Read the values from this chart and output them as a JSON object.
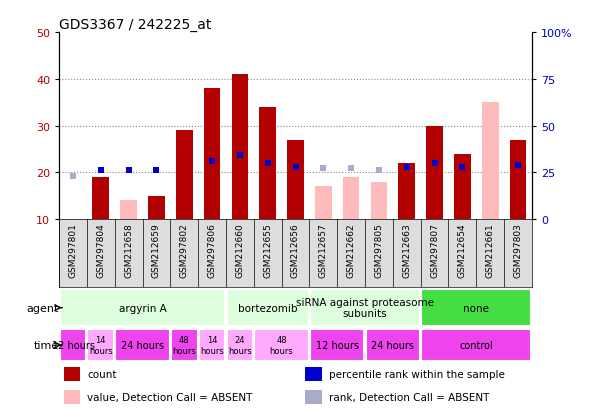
{
  "title": "GDS3367 / 242225_at",
  "samples": [
    "GSM297801",
    "GSM297804",
    "GSM212658",
    "GSM212659",
    "GSM297802",
    "GSM297806",
    "GSM212660",
    "GSM212655",
    "GSM212656",
    "GSM212657",
    "GSM212662",
    "GSM297805",
    "GSM212663",
    "GSM297807",
    "GSM212654",
    "GSM212661",
    "GSM297803"
  ],
  "count_values": [
    10,
    19,
    null,
    15,
    29,
    38,
    41,
    34,
    27,
    null,
    null,
    null,
    22,
    30,
    24,
    null,
    27
  ],
  "count_absent": [
    null,
    null,
    14,
    null,
    null,
    null,
    null,
    null,
    null,
    17,
    19,
    18,
    null,
    null,
    null,
    35,
    null
  ],
  "rank_values": [
    null,
    26,
    26,
    26,
    null,
    31,
    34,
    30,
    28,
    null,
    null,
    null,
    28,
    30,
    28,
    null,
    29
  ],
  "rank_absent": [
    23,
    null,
    null,
    null,
    null,
    null,
    null,
    null,
    null,
    27,
    27,
    26,
    null,
    null,
    null,
    null,
    null
  ],
  "ylim_left": [
    10,
    50
  ],
  "ylim_right": [
    0,
    100
  ],
  "yticks_left": [
    10,
    20,
    30,
    40,
    50
  ],
  "yticks_right": [
    0,
    25,
    50,
    75,
    100
  ],
  "ytick_labels_right": [
    "0",
    "25",
    "50",
    "75",
    "100%"
  ],
  "bar_color_red": "#b30000",
  "bar_color_pink": "#ffbbbb",
  "dot_color_blue": "#0000cc",
  "dot_color_lightblue": "#aaaacc",
  "agent_groups": [
    {
      "label": "argyrin A",
      "start": 0,
      "end": 6,
      "color": "#ddffdd"
    },
    {
      "label": "bortezomib",
      "start": 6,
      "end": 9,
      "color": "#ddffdd"
    },
    {
      "label": "siRNA against proteasome\nsubunits",
      "start": 9,
      "end": 13,
      "color": "#ddffdd"
    },
    {
      "label": "none",
      "start": 13,
      "end": 17,
      "color": "#44dd44"
    }
  ],
  "time_groups": [
    {
      "label": "12 hours",
      "start": 0,
      "end": 1,
      "color": "#ee44ee",
      "fontsize": 7
    },
    {
      "label": "14\nhours",
      "start": 1,
      "end": 2,
      "color": "#ffaaff",
      "fontsize": 6
    },
    {
      "label": "24 hours",
      "start": 2,
      "end": 4,
      "color": "#ee44ee",
      "fontsize": 7
    },
    {
      "label": "48\nhours",
      "start": 4,
      "end": 5,
      "color": "#ee44ee",
      "fontsize": 6
    },
    {
      "label": "14\nhours",
      "start": 5,
      "end": 6,
      "color": "#ffaaff",
      "fontsize": 6
    },
    {
      "label": "24\nhours",
      "start": 6,
      "end": 7,
      "color": "#ffaaff",
      "fontsize": 6
    },
    {
      "label": "48\nhours",
      "start": 7,
      "end": 9,
      "color": "#ffaaff",
      "fontsize": 6
    },
    {
      "label": "12 hours",
      "start": 9,
      "end": 11,
      "color": "#ee44ee",
      "fontsize": 7
    },
    {
      "label": "24 hours",
      "start": 11,
      "end": 13,
      "color": "#ee44ee",
      "fontsize": 7
    },
    {
      "label": "control",
      "start": 13,
      "end": 17,
      "color": "#ee44ee",
      "fontsize": 7
    }
  ],
  "legend_items": [
    {
      "label": "count",
      "color": "#b30000"
    },
    {
      "label": "percentile rank within the sample",
      "color": "#0000cc"
    },
    {
      "label": "value, Detection Call = ABSENT",
      "color": "#ffbbbb"
    },
    {
      "label": "rank, Detection Call = ABSENT",
      "color": "#aaaacc"
    }
  ],
  "bg_gray": "#dddddd",
  "bg_white": "#ffffff"
}
